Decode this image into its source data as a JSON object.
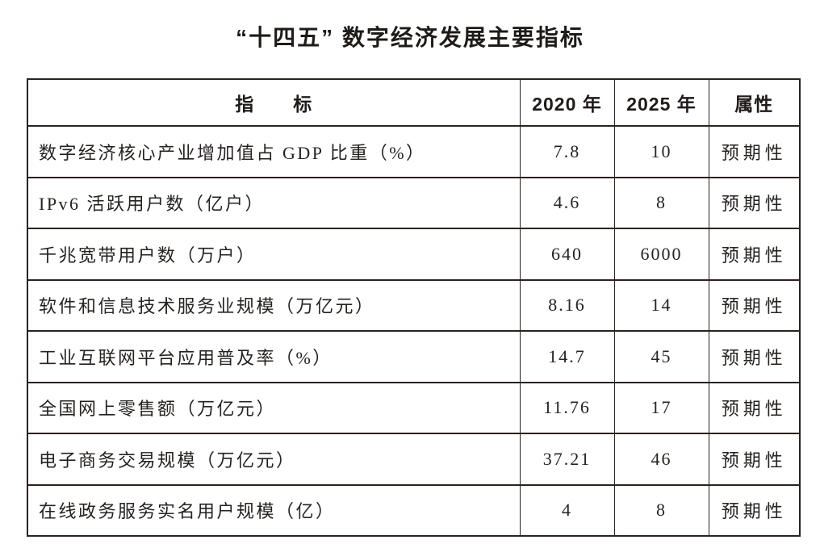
{
  "title": "“十四五” 数字经济发展主要指标",
  "chart_data": {
    "type": "table",
    "title": "“十四五” 数字经济发展主要指标",
    "columns": [
      "指　　标",
      "2020 年",
      "2025 年",
      "属性"
    ],
    "rows": [
      [
        "数字经济核心产业增加值占 GDP 比重（%）",
        "7.8",
        "10",
        "预期性"
      ],
      [
        "IPv6 活跃用户数（亿户）",
        "4.6",
        "8",
        "预期性"
      ],
      [
        "千兆宽带用户数（万户）",
        "640",
        "6000",
        "预期性"
      ],
      [
        "软件和信息技术服务业规模（万亿元）",
        "8.16",
        "14",
        "预期性"
      ],
      [
        "工业互联网平台应用普及率（%）",
        "14.7",
        "45",
        "预期性"
      ],
      [
        "全国网上零售额（万亿元）",
        "11.76",
        "17",
        "预期性"
      ],
      [
        "电子商务交易规模（万亿元）",
        "37.21",
        "46",
        "预期性"
      ],
      [
        "在线政务服务实名用户规模（亿）",
        "4",
        "8",
        "预期性"
      ]
    ],
    "values_2020": [
      7.8,
      4.6,
      640,
      8.16,
      14.7,
      11.76,
      37.21,
      4
    ],
    "values_2025": [
      10,
      8,
      6000,
      14,
      45,
      17,
      46,
      8
    ],
    "attribute_all": "预期性"
  }
}
